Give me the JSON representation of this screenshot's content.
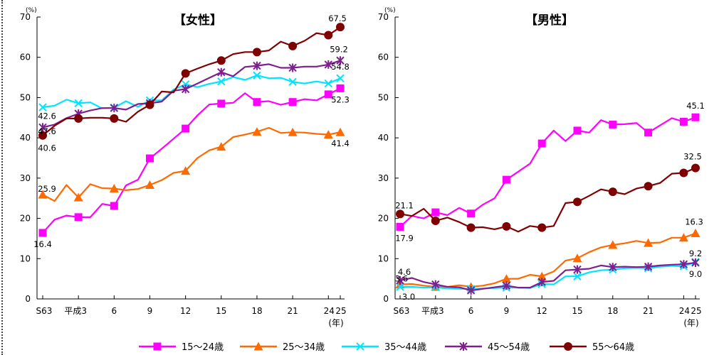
{
  "chart_data": [
    {
      "type": "line",
      "title": "【女性】",
      "y_unit": "(%)",
      "x_unit": "(年)",
      "ylim": [
        0,
        70
      ],
      "yticks": [
        "0",
        "10",
        "20",
        "30",
        "40",
        "50",
        "60",
        "70"
      ],
      "x_ticks": [
        {
          "x": 0,
          "label": "S63"
        },
        {
          "x": 3,
          "label": "平成3"
        },
        {
          "x": 6,
          "label": "6"
        },
        {
          "x": 9,
          "label": "9"
        },
        {
          "x": 12,
          "label": "12"
        },
        {
          "x": 15,
          "label": "15"
        },
        {
          "x": 18,
          "label": "18"
        },
        {
          "x": 21,
          "label": "21"
        },
        {
          "x": 24,
          "label": "24"
        },
        {
          "x": 25,
          "label": "25"
        }
      ],
      "grid": false,
      "x": [
        0,
        1,
        2,
        3,
        4,
        5,
        6,
        7,
        8,
        9,
        10,
        11,
        12,
        13,
        14,
        15,
        16,
        17,
        18,
        19,
        20,
        21,
        22,
        23,
        24,
        25
      ],
      "series": [
        {
          "name": "15～24歳",
          "color": "#FF00FF",
          "marker": "square",
          "values": [
            16.4,
            19.7,
            20.7,
            20.3,
            20.3,
            23.6,
            23.1,
            28.2,
            29.6,
            34.9,
            37.3,
            39.8,
            42.3,
            45.6,
            48.3,
            48.5,
            48.7,
            51.1,
            48.9,
            49.1,
            48.2,
            48.9,
            49.6,
            49.3,
            50.8,
            52.3
          ],
          "labels": [
            {
              "x": 0,
              "text": "16.4"
            },
            {
              "x": 25,
              "text": "52.3"
            }
          ]
        },
        {
          "name": "25～34歳",
          "color": "#FF6A00",
          "marker": "triangle",
          "values": [
            25.9,
            24.3,
            28.3,
            25.2,
            28.5,
            27.5,
            27.4,
            27.0,
            27.3,
            28.3,
            29.5,
            31.3,
            31.8,
            35.0,
            36.9,
            37.8,
            40.2,
            40.8,
            41.5,
            42.5,
            41.2,
            41.4,
            41.3,
            41.0,
            40.8,
            41.4
          ],
          "labels": [
            {
              "x": 0,
              "text": "25.9"
            },
            {
              "x": 25,
              "text": "41.4"
            }
          ]
        },
        {
          "name": "35～44歳",
          "color": "#00E5FF",
          "marker": "x",
          "values": [
            47.6,
            48.0,
            49.5,
            48.6,
            48.8,
            47.3,
            47.5,
            49.1,
            47.7,
            49.3,
            49.3,
            52.0,
            53.3,
            52.6,
            53.4,
            54.0,
            55.1,
            54.4,
            55.5,
            54.8,
            54.9,
            53.9,
            53.5,
            54.0,
            53.5,
            54.8
          ],
          "labels": [
            {
              "x": 0,
              "text": "47.6"
            },
            {
              "x": 25,
              "text": "54.8"
            }
          ]
        },
        {
          "name": "45～54歳",
          "color": "#7F1F8F",
          "marker": "asterisk",
          "values": [
            42.6,
            43.3,
            44.9,
            46.0,
            46.8,
            47.4,
            47.4,
            47.0,
            48.4,
            48.6,
            49.0,
            51.7,
            52.1,
            53.5,
            54.9,
            56.3,
            55.3,
            57.6,
            57.9,
            58.3,
            57.4,
            57.4,
            57.7,
            57.7,
            58.2,
            59.2
          ],
          "labels": [
            {
              "x": 0,
              "text": "42.6"
            },
            {
              "x": 25,
              "text": "59.2"
            }
          ]
        },
        {
          "name": "55～64歳",
          "color": "#7F0000",
          "marker": "circle",
          "values": [
            40.6,
            43.0,
            44.8,
            44.8,
            45.0,
            45.0,
            44.8,
            44.0,
            46.5,
            48.2,
            51.5,
            51.3,
            56.0,
            57.2,
            58.3,
            59.2,
            60.8,
            61.3,
            61.3,
            61.7,
            63.9,
            62.8,
            64.1,
            66.0,
            65.5,
            67.5
          ],
          "labels": [
            {
              "x": 0,
              "text": "40.6"
            },
            {
              "x": 25,
              "text": "67.5"
            }
          ]
        }
      ]
    },
    {
      "type": "line",
      "title": "【男性】",
      "y_unit": "(%)",
      "x_unit": "(年)",
      "ylim": [
        0,
        70
      ],
      "yticks": [
        "0",
        "10",
        "20",
        "30",
        "40",
        "50",
        "60",
        "70"
      ],
      "x_ticks": [
        {
          "x": 0,
          "label": "S63"
        },
        {
          "x": 3,
          "label": "平成3"
        },
        {
          "x": 6,
          "label": "6"
        },
        {
          "x": 9,
          "label": "9"
        },
        {
          "x": 12,
          "label": "12"
        },
        {
          "x": 15,
          "label": "15"
        },
        {
          "x": 18,
          "label": "18"
        },
        {
          "x": 21,
          "label": "21"
        },
        {
          "x": 24,
          "label": "24"
        },
        {
          "x": 25,
          "label": "25"
        }
      ],
      "grid": false,
      "x": [
        0,
        1,
        2,
        3,
        4,
        5,
        6,
        7,
        8,
        9,
        10,
        11,
        12,
        13,
        14,
        15,
        16,
        17,
        18,
        19,
        20,
        21,
        22,
        23,
        24,
        25
      ],
      "series": [
        {
          "name": "15～24歳",
          "color": "#FF00FF",
          "marker": "square",
          "values": [
            17.9,
            20.6,
            20.0,
            21.5,
            20.8,
            22.6,
            21.2,
            23.4,
            25.0,
            29.6,
            31.6,
            33.6,
            38.6,
            41.8,
            39.2,
            41.8,
            41.3,
            44.4,
            43.3,
            43.4,
            43.7,
            41.3,
            43.1,
            44.9,
            44.0,
            45.1
          ],
          "labels": [
            {
              "x": 0,
              "text": "17.9"
            },
            {
              "x": 25,
              "text": "45.1"
            }
          ]
        },
        {
          "name": "25～34歳",
          "color": "#FF6A00",
          "marker": "triangle",
          "values": [
            3.6,
            3.7,
            3.3,
            3.0,
            3.0,
            3.4,
            3.0,
            3.3,
            3.9,
            5.0,
            5.0,
            6.0,
            5.6,
            6.8,
            9.5,
            10.1,
            11.6,
            12.8,
            13.4,
            13.8,
            14.4,
            13.9,
            14.0,
            15.2,
            15.2,
            16.3
          ],
          "labels": [
            {
              "x": 0,
              "text": "3.6"
            },
            {
              "x": 25,
              "text": "16.3"
            }
          ]
        },
        {
          "name": "35～44歳",
          "color": "#00E5FF",
          "marker": "x",
          "values": [
            3.0,
            3.0,
            2.8,
            2.9,
            2.6,
            2.5,
            2.5,
            2.6,
            2.7,
            2.8,
            2.8,
            2.7,
            3.7,
            3.6,
            5.6,
            5.6,
            6.6,
            7.1,
            7.3,
            7.6,
            7.7,
            7.6,
            8.0,
            8.2,
            8.1,
            9.2
          ],
          "labels": [
            {
              "x": 0,
              "text": "3.0"
            },
            {
              "x": 25,
              "text": "9.2"
            }
          ]
        },
        {
          "name": "45～54歳",
          "color": "#7F1F8F",
          "marker": "asterisk",
          "values": [
            4.6,
            5.2,
            4.2,
            3.6,
            3.0,
            2.9,
            2.1,
            2.5,
            2.9,
            3.3,
            2.8,
            2.8,
            4.2,
            4.5,
            7.1,
            7.3,
            7.5,
            8.3,
            7.9,
            8.0,
            7.9,
            8.0,
            8.3,
            8.5,
            8.6,
            9.0
          ],
          "labels": [
            {
              "x": 0,
              "text": "4.6"
            },
            {
              "x": 25,
              "text": "9.0"
            }
          ]
        },
        {
          "name": "55～64歳",
          "color": "#7F0000",
          "marker": "circle",
          "values": [
            21.1,
            20.6,
            22.4,
            19.4,
            20.2,
            19.1,
            17.7,
            17.8,
            17.3,
            18.0,
            16.7,
            18.1,
            17.7,
            18.1,
            23.8,
            24.1,
            25.6,
            27.2,
            26.6,
            26.0,
            27.4,
            28.0,
            28.8,
            31.1,
            31.3,
            32.5
          ],
          "labels": [
            {
              "x": 0,
              "text": "21.1"
            },
            {
              "x": 25,
              "text": "32.5"
            }
          ]
        }
      ]
    }
  ],
  "legend": [
    {
      "name": "15～24歳",
      "color": "#FF00FF",
      "marker": "square"
    },
    {
      "name": "25～34歳",
      "color": "#FF6A00",
      "marker": "triangle"
    },
    {
      "name": "35～44歳",
      "color": "#00E5FF",
      "marker": "x"
    },
    {
      "name": "45～54歳",
      "color": "#7F1F8F",
      "marker": "asterisk"
    },
    {
      "name": "55～64歳",
      "color": "#7F0000",
      "marker": "circle"
    }
  ]
}
